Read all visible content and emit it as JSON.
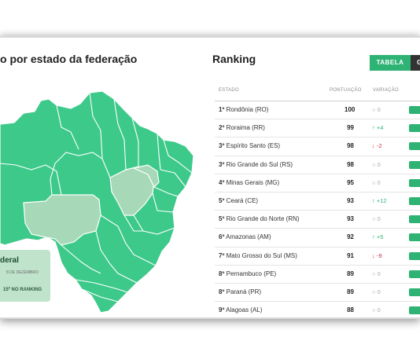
{
  "map": {
    "title": "o por estado da federação",
    "info_card": {
      "heading": "deral",
      "subtitle": "8 DE DEZEMBRO",
      "rank_text": "15º NO RANKING"
    }
  },
  "ranking": {
    "title": "Ranking",
    "tabs": {
      "active": "TABELA",
      "inactive": "G"
    },
    "columns": {
      "state": "ESTADO",
      "score": "PONTUAÇÃO",
      "variation": "VARIAÇÃO"
    },
    "rows": [
      {
        "pos": "1º",
        "state": "Rondônia (RO)",
        "score": "100",
        "variation": "0",
        "dir": "zero"
      },
      {
        "pos": "2º",
        "state": "Roraima (RR)",
        "score": "99",
        "variation": "+4",
        "dir": "up"
      },
      {
        "pos": "3º",
        "state": "Espírito Santo (ES)",
        "score": "98",
        "variation": "-2",
        "dir": "down"
      },
      {
        "pos": "3º",
        "state": "Rio Grande do Sul (RS)",
        "score": "98",
        "variation": "0",
        "dir": "zero"
      },
      {
        "pos": "4º",
        "state": "Minas Gerais (MG)",
        "score": "95",
        "variation": "0",
        "dir": "zero"
      },
      {
        "pos": "5º",
        "state": "Ceará (CE)",
        "score": "93",
        "variation": "+12",
        "dir": "up"
      },
      {
        "pos": "5º",
        "state": "Rio Grande do Norte (RN)",
        "score": "93",
        "variation": "0",
        "dir": "zero"
      },
      {
        "pos": "6º",
        "state": "Amazonas (AM)",
        "score": "92",
        "variation": "+5",
        "dir": "up"
      },
      {
        "pos": "7º",
        "state": "Mato Grosso do Sul (MS)",
        "score": "91",
        "variation": "-9",
        "dir": "down"
      },
      {
        "pos": "8º",
        "state": "Pernambuco (PE)",
        "score": "89",
        "variation": "0",
        "dir": "zero"
      },
      {
        "pos": "8º",
        "state": "Paraná (PR)",
        "score": "89",
        "variation": "0",
        "dir": "zero"
      },
      {
        "pos": "9º",
        "state": "Alagoas (AL)",
        "score": "88",
        "variation": "0",
        "dir": "zero"
      }
    ]
  },
  "colors": {
    "accent": "#2fb374",
    "map_fill": "#3dc98a",
    "map_light": "#a7d8b8",
    "down": "#d0314a"
  },
  "icons": {
    "up": "↑",
    "down": "↓",
    "zero": "○"
  }
}
